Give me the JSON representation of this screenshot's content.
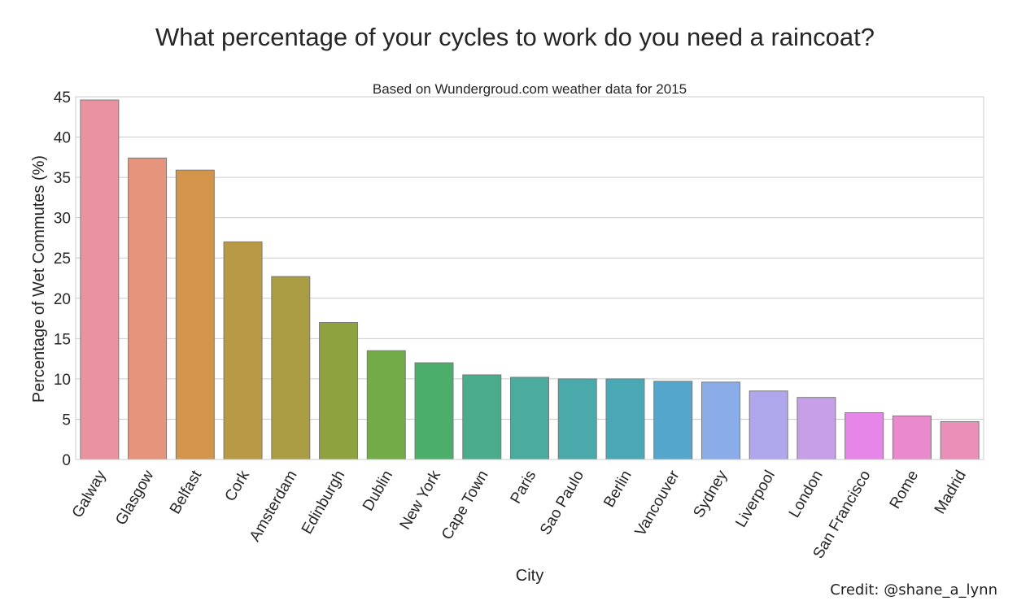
{
  "chart_data": {
    "type": "bar",
    "title": "What percentage of your cycles to work do you need a raincoat?",
    "subtitle": "Based on Wundergroud.com weather data for 2015",
    "xlabel": "City",
    "ylabel": "Percentage of Wet Commutes (%)",
    "ylim": [
      0,
      45
    ],
    "yticks": [
      0,
      5,
      10,
      15,
      20,
      25,
      30,
      35,
      40,
      45
    ],
    "grid": true,
    "categories": [
      "Galway",
      "Glasgow",
      "Belfast",
      "Cork",
      "Amsterdam",
      "Edinburgh",
      "Dublin",
      "New York",
      "Cape Town",
      "Paris",
      "Sao Paulo",
      "Berlin",
      "Vancouver",
      "Sydney",
      "Liverpool",
      "London",
      "San Francisco",
      "Rome",
      "Madrid"
    ],
    "values": [
      44.6,
      37.4,
      35.9,
      27.0,
      22.7,
      17.0,
      13.5,
      12.0,
      10.5,
      10.2,
      10.0,
      10.0,
      9.7,
      9.6,
      8.5,
      7.7,
      5.8,
      5.4,
      4.7
    ],
    "colors": [
      "#e8939f",
      "#e6957c",
      "#d2954b",
      "#b89945",
      "#a99c42",
      "#8ea33f",
      "#72ab47",
      "#4bae6a",
      "#4aac8d",
      "#4bab9f",
      "#4aa9aa",
      "#4aa8b5",
      "#55a6cd",
      "#8aadea",
      "#aea7ec",
      "#c79ee8",
      "#e686e8",
      "#e98acc",
      "#e98fb8"
    ]
  },
  "credit": "Credit: @shane_a_lynn"
}
